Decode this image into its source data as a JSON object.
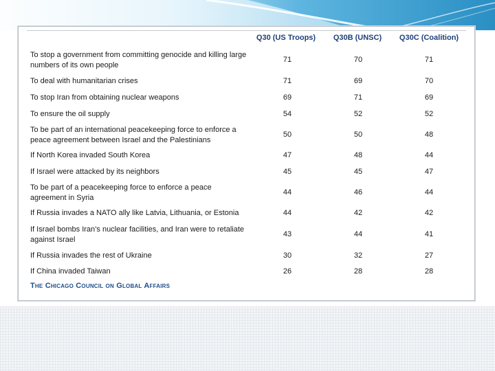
{
  "columns": [
    "Q30 (US Troops)",
    "Q30B (UNSC)",
    "Q30C (Coalition)"
  ],
  "rows": [
    {
      "label": "To stop a government from committing genocide and killing large numbers of its own people",
      "values": [
        "71",
        "70",
        "71"
      ]
    },
    {
      "label": "To deal with humanitarian crises",
      "values": [
        "71",
        "69",
        "70"
      ]
    },
    {
      "label": "To stop Iran from obtaining nuclear weapons",
      "values": [
        "69",
        "71",
        "69"
      ]
    },
    {
      "label": "To ensure the oil supply",
      "values": [
        "54",
        "52",
        "52"
      ]
    },
    {
      "label": "To be part of an international peacekeeping force to enforce a peace agreement between Israel and the Palestinians",
      "values": [
        "50",
        "50",
        "48"
      ]
    },
    {
      "label": "If North Korea invaded South Korea",
      "values": [
        "47",
        "48",
        "44"
      ]
    },
    {
      "label": "If Israel were attacked by its neighbors",
      "values": [
        "45",
        "45",
        "47"
      ]
    },
    {
      "label": "To be part of a peacekeeping force to enforce a peace agreement in Syria",
      "values": [
        "44",
        "46",
        "44"
      ]
    },
    {
      "label": "If Russia invades a NATO ally like Latvia, Lithuania, or Estonia",
      "values": [
        "44",
        "42",
        "42"
      ]
    },
    {
      "label": "If Israel bombs Iran’s nuclear facilities, and Iran were to retaliate against Israel",
      "values": [
        "43",
        "44",
        "41"
      ]
    },
    {
      "label": "If Russia invades the rest of Ukraine",
      "values": [
        "30",
        "32",
        "27"
      ]
    },
    {
      "label": "If China invaded Taiwan",
      "values": [
        "26",
        "28",
        "28"
      ]
    }
  ],
  "footer": "The Chicago Council on Global Affairs",
  "colors": {
    "header_text": "#1f3f78",
    "footer_text": "#1f4e8c",
    "banner": "#2a8fc4"
  }
}
